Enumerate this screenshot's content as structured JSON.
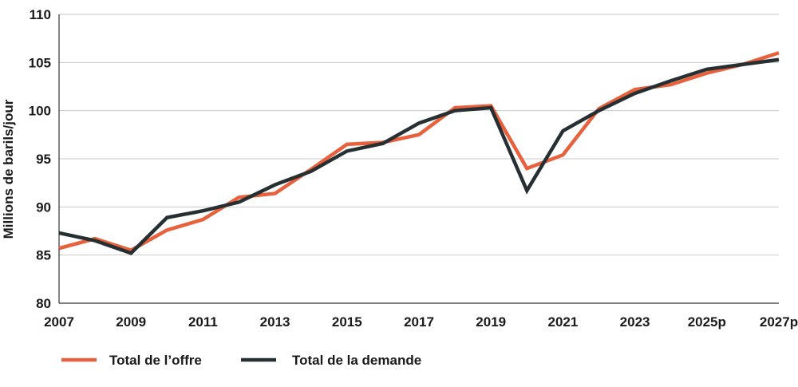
{
  "chart_data": {
    "type": "line",
    "title": "",
    "xlabel": "",
    "ylabel": "Millions de barils/jour",
    "ylim": [
      80,
      110
    ],
    "yticks": [
      80,
      85,
      90,
      95,
      100,
      105,
      110
    ],
    "x": [
      "2007",
      "2008",
      "2009",
      "2010",
      "2011",
      "2012",
      "2013",
      "2014",
      "2015",
      "2016",
      "2017",
      "2018",
      "2019",
      "2020",
      "2021",
      "2022",
      "2023",
      "2024",
      "2025p",
      "2026p",
      "2027p"
    ],
    "xtick_labels": [
      "2007",
      "2009",
      "2011",
      "2013",
      "2015",
      "2017",
      "2019",
      "2021",
      "2023",
      "2025p",
      "2027p"
    ],
    "grid": "horizontal",
    "legend_position": "bottom",
    "series": [
      {
        "name": "Total de l’offre",
        "color": "#e8603c",
        "values": [
          85.7,
          86.7,
          85.5,
          87.6,
          88.7,
          91.0,
          91.4,
          93.9,
          96.5,
          96.7,
          97.5,
          100.3,
          100.5,
          94.0,
          95.4,
          100.2,
          102.2,
          102.7,
          103.9,
          104.8,
          106.0
        ]
      },
      {
        "name": "Total de la demande",
        "color": "#263033",
        "values": [
          87.3,
          86.5,
          85.2,
          88.9,
          89.6,
          90.5,
          92.3,
          93.7,
          95.8,
          96.6,
          98.7,
          100.0,
          100.3,
          91.7,
          97.9,
          100.0,
          101.8,
          103.1,
          104.3,
          104.8,
          105.3
        ]
      }
    ]
  }
}
